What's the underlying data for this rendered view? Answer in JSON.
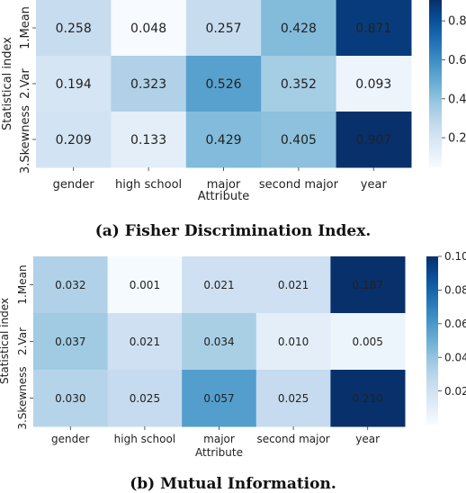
{
  "chart_data": [
    {
      "type": "heatmap",
      "caption": "(a) Fisher Discrimination Index.",
      "xlabel": "Attribute",
      "ylabel": "Statistical index",
      "x_categories": [
        "gender",
        "high school",
        "major",
        "second major",
        "year"
      ],
      "y_categories": [
        "1.Mean",
        "2.Var",
        "3.Skewness"
      ],
      "values": [
        [
          0.258,
          0.048,
          0.257,
          0.428,
          0.871
        ],
        [
          0.194,
          0.323,
          0.526,
          0.352,
          0.093
        ],
        [
          0.209,
          0.133,
          0.429,
          0.405,
          0.907
        ]
      ],
      "value_labels": [
        [
          "0.258",
          "0.048",
          "0.257",
          "0.428",
          "0.871"
        ],
        [
          "0.194",
          "0.323",
          "0.526",
          "0.352",
          "0.093"
        ],
        [
          "0.209",
          "0.133",
          "0.429",
          "0.405",
          "0.907"
        ]
      ],
      "colormap": "Blues",
      "vmin": 0.048,
      "vmax": 0.907,
      "colorbar_ticks": [
        0.2,
        0.4,
        0.6,
        0.8
      ],
      "colorbar_tick_labels": [
        "0.2",
        "0.4",
        "0.6",
        "0.8"
      ]
    },
    {
      "type": "heatmap",
      "caption": "(b) Mutual Information.",
      "xlabel": "Attribute",
      "ylabel": "Statistical index",
      "x_categories": [
        "gender",
        "high school",
        "major",
        "second major",
        "year"
      ],
      "y_categories": [
        "1.Mean",
        "2.Var",
        "3.Skewness"
      ],
      "values": [
        [
          0.032,
          0.001,
          0.021,
          0.021,
          0.187
        ],
        [
          0.037,
          0.021,
          0.034,
          0.01,
          0.005
        ],
        [
          0.03,
          0.025,
          0.057,
          0.025,
          0.21
        ]
      ],
      "value_labels": [
        [
          "0.032",
          "0.001",
          "0.021",
          "0.021",
          "0.187"
        ],
        [
          "0.037",
          "0.021",
          "0.034",
          "0.010",
          "0.005"
        ],
        [
          "0.030",
          "0.025",
          "0.057",
          "0.025",
          "0.210"
        ]
      ],
      "colormap": "Blues",
      "vmin": 0.0,
      "vmax": 0.1,
      "colorbar_ticks": [
        0.02,
        0.04,
        0.06,
        0.08,
        0.1
      ],
      "colorbar_tick_labels": [
        "0.02",
        "0.04",
        "0.06",
        "0.08",
        "0.10"
      ]
    }
  ]
}
